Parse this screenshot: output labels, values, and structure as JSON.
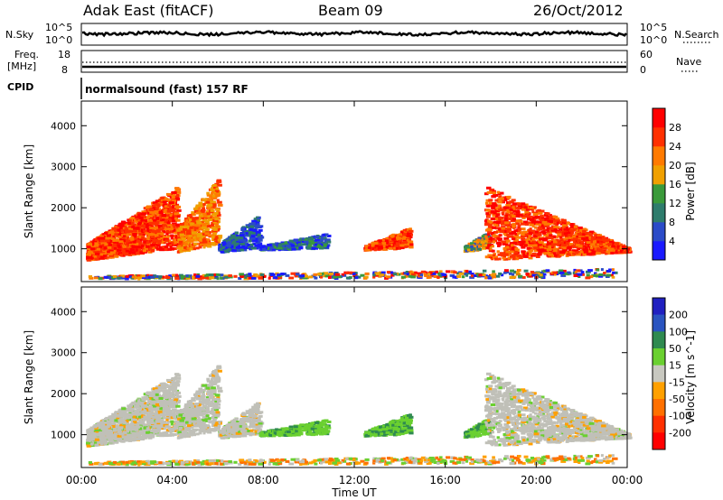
{
  "header": {
    "station": "Adak East (fitACF)",
    "beam": "Beam 09",
    "date": "26/Oct/2012"
  },
  "top_panels": {
    "nsky_label": "N.Sky",
    "nsky_ticks": [
      "10^5",
      "10^0"
    ],
    "nsearch_label": "N.Search",
    "nsearch_ticks": [
      "10^5",
      "10^0"
    ],
    "freq_label_1": "Freq.",
    "freq_label_2": "[MHz]",
    "freq_ticks": [
      "18",
      "8"
    ],
    "nave_label": "Nave",
    "nave_ticks": [
      "60",
      "0"
    ],
    "cpid_label": "CPID",
    "cpid_text": "normalsound (fast) 157 RF"
  },
  "colors": {
    "power": [
      "#1a1aff",
      "#2b4bc8",
      "#2e7c6c",
      "#3a9a3a",
      "#f0a000",
      "#ff7a00",
      "#ff3000",
      "#ff0000"
    ],
    "velocity": [
      "#2020c0",
      "#2a54c0",
      "#2f8a50",
      "#6ad030",
      "#c8c8c0",
      "#ffa000",
      "#ff7000",
      "#ff3000",
      "#ff0000"
    ],
    "ground": "#c0c0b8"
  },
  "chart_data": [
    {
      "type": "heatmap",
      "name": "power",
      "ylabel": "Slant Range [km]",
      "xlabel": "Time UT",
      "x_ticks": [
        "00:00",
        "04:00",
        "08:00",
        "12:00",
        "16:00",
        "20:00",
        "00:00"
      ],
      "xlim": [
        0,
        24
      ],
      "ylim": [
        200,
        4600
      ],
      "y_ticks": [
        "1000",
        "2000",
        "3000",
        "4000"
      ],
      "colorbar_label": "Power [dB]",
      "colorbar_ticks": [
        "4",
        "8",
        "12",
        "16",
        "20",
        "24",
        "28"
      ]
    },
    {
      "type": "heatmap",
      "name": "velocity",
      "ylabel": "Slant Range [km]",
      "xlabel": "Time UT",
      "x_ticks": [
        "00:00",
        "04:00",
        "08:00",
        "12:00",
        "16:00",
        "20:00",
        "00:00"
      ],
      "xlim": [
        0,
        24
      ],
      "ylim": [
        200,
        4600
      ],
      "y_ticks": [
        "1000",
        "2000",
        "3000",
        "4000"
      ],
      "colorbar_label": "Velocity [m s^-1]",
      "colorbar_ticks": [
        "200",
        "100",
        "50",
        "15",
        "-15",
        "-50",
        "-100",
        "-200"
      ]
    }
  ]
}
